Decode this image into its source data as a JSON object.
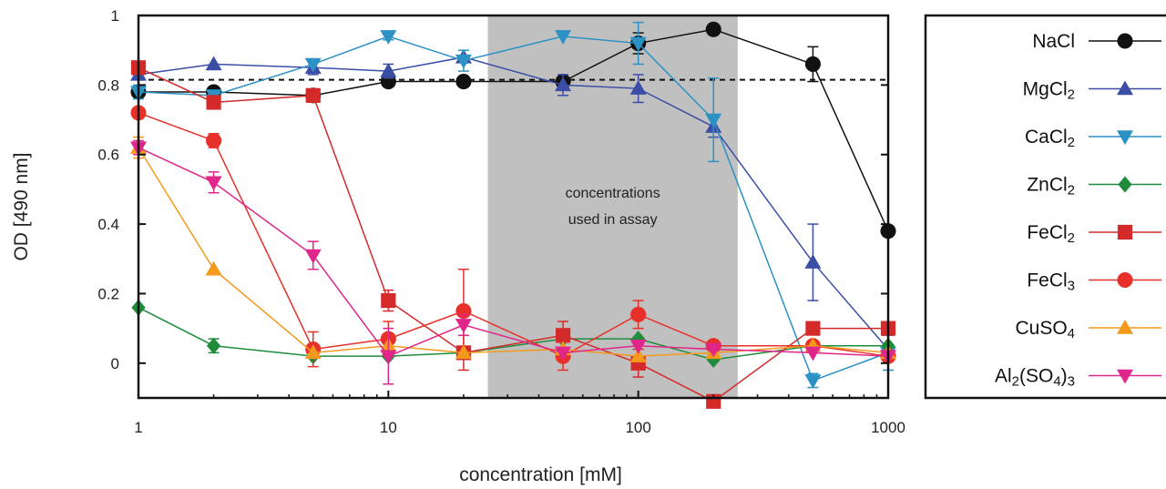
{
  "chart_data": {
    "type": "line",
    "xlabel": "concentration [mM]",
    "ylabel": "OD [490 nm]",
    "x_scale": "log",
    "xlim": [
      1,
      1000
    ],
    "ylim": [
      -0.1,
      1
    ],
    "x_ticks": [
      1,
      10,
      100,
      1000
    ],
    "x_tick_labels": [
      "1",
      "10",
      "100",
      "1000"
    ],
    "y_ticks": [
      0,
      0.2,
      0.4,
      0.6,
      0.8,
      1
    ],
    "y_tick_labels": [
      "0",
      "0.2",
      "0.4",
      "0.6",
      "0.8",
      "1"
    ],
    "grid": false,
    "legend_position": "right",
    "reference_line": {
      "y": 0.815,
      "style": "dashed"
    },
    "shaded_region": {
      "x_range": [
        25,
        250
      ],
      "label_lines": [
        "concentrations",
        "used in assay"
      ],
      "color": "#c0c0c0"
    },
    "series": [
      {
        "name": "NaCl",
        "name_base": "NaCl",
        "name_subs": [],
        "marker": "circle",
        "color": "#111111",
        "x": [
          1,
          2,
          5,
          10,
          20,
          50,
          100,
          200,
          500,
          1000
        ],
        "y": [
          0.78,
          0.78,
          0.77,
          0.81,
          0.81,
          0.81,
          0.92,
          0.96,
          0.86,
          0.38
        ],
        "err": [
          0.01,
          0.01,
          0,
          0,
          0,
          0,
          0.03,
          0,
          0.05,
          0.01
        ]
      },
      {
        "name": "MgCl2",
        "name_base": "MgCl",
        "name_subs": [
          "2"
        ],
        "marker": "triangle-up",
        "color": "#3b4ea5",
        "x": [
          1,
          2,
          5,
          10,
          20,
          50,
          100,
          200,
          500,
          1000
        ],
        "y": [
          0.83,
          0.86,
          0.85,
          0.84,
          0.88,
          0.8,
          0.79,
          0.68,
          0.29,
          0.04
        ],
        "err": [
          0,
          0,
          0.02,
          0.02,
          0,
          0.03,
          0.04,
          0.03,
          0.11,
          0
        ]
      },
      {
        "name": "CaCl2",
        "name_base": "CaCl",
        "name_subs": [
          "2"
        ],
        "marker": "triangle-down",
        "color": "#2c91c4",
        "x": [
          1,
          2,
          5,
          10,
          20,
          50,
          100,
          200,
          500,
          1000
        ],
        "y": [
          0.78,
          0.77,
          0.86,
          0.94,
          0.87,
          0.94,
          0.92,
          0.7,
          -0.05,
          0.03
        ],
        "err": [
          0.02,
          0,
          0,
          0.01,
          0.03,
          0,
          0.06,
          0.12,
          0.02,
          0.05
        ]
      },
      {
        "name": "ZnCl2",
        "name_base": "ZnCl",
        "name_subs": [
          "2"
        ],
        "marker": "diamond",
        "color": "#1f8c3b",
        "x": [
          1,
          2,
          5,
          10,
          20,
          50,
          100,
          200,
          500,
          1000
        ],
        "y": [
          0.16,
          0.05,
          0.02,
          0.02,
          0.03,
          0.07,
          0.07,
          0.01,
          0.05,
          0.05
        ],
        "err": [
          0,
          0.02,
          0,
          0,
          0,
          0,
          0,
          0,
          0,
          0
        ]
      },
      {
        "name": "FeCl2",
        "name_base": "FeCl",
        "name_subs": [
          "2"
        ],
        "marker": "square",
        "color": "#d42a2a",
        "x": [
          1,
          2,
          5,
          10,
          20,
          50,
          100,
          200,
          500,
          1000
        ],
        "y": [
          0.85,
          0.75,
          0.77,
          0.18,
          0.03,
          0.08,
          0.0,
          -0.11,
          0.1,
          0.1
        ],
        "err": [
          0,
          0,
          0,
          0.03,
          0.05,
          0.04,
          0.04,
          0,
          0,
          0
        ]
      },
      {
        "name": "FeCl3",
        "name_base": "FeCl",
        "name_subs": [
          "3"
        ],
        "marker": "circle",
        "color": "#e8302a",
        "x": [
          1,
          2,
          5,
          10,
          20,
          50,
          100,
          200,
          500,
          1000
        ],
        "y": [
          0.72,
          0.64,
          0.04,
          0.07,
          0.15,
          0.02,
          0.14,
          0.05,
          0.05,
          0.02
        ],
        "err": [
          0,
          0.02,
          0.05,
          0.05,
          0.12,
          0.04,
          0.04,
          0,
          0,
          0
        ]
      },
      {
        "name": "CuSO4",
        "name_base": "CuSO",
        "name_subs": [
          "4"
        ],
        "marker": "triangle-up",
        "color": "#f39a1d",
        "x": [
          1,
          2,
          5,
          10,
          20,
          50,
          100,
          200,
          500,
          1000
        ],
        "y": [
          0.62,
          0.27,
          0.03,
          0.05,
          0.03,
          0.04,
          0.02,
          0.03,
          0.05,
          0.03
        ],
        "err": [
          0.03,
          0,
          0,
          0,
          0,
          0,
          0,
          0,
          0,
          0
        ]
      },
      {
        "name": "Al2(SO4)3",
        "name_base": "Al",
        "name_subs": [
          "2",
          "(SO",
          "4",
          ")",
          "3"
        ],
        "marker": "triangle-down",
        "color": "#e0268a",
        "x": [
          1,
          2,
          5,
          10,
          20,
          50,
          100,
          200,
          500,
          1000
        ],
        "y": [
          0.62,
          0.52,
          0.31,
          0.02,
          0.11,
          0.03,
          0.05,
          0.04,
          0.03,
          0.02
        ],
        "err": [
          0.02,
          0.03,
          0.04,
          0.08,
          0.03,
          0,
          0,
          0,
          0,
          0
        ]
      }
    ]
  }
}
